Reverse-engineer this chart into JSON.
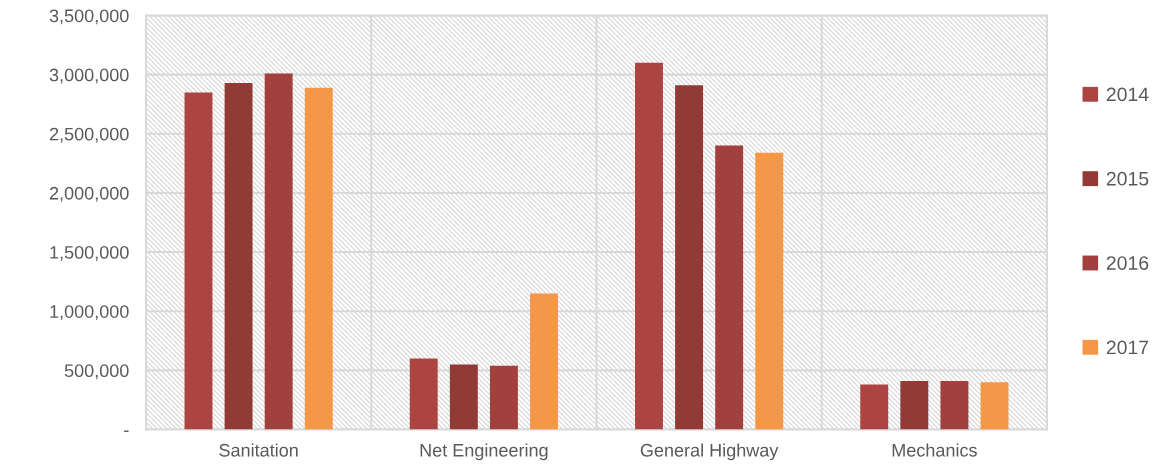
{
  "chart_data": {
    "type": "bar",
    "categories": [
      "Sanitation",
      "Net Engineering",
      "General Highway",
      "Mechanics"
    ],
    "series": [
      {
        "name": "2014",
        "color": "#ac4542",
        "values": [
          2850000,
          600000,
          3100000,
          380000
        ]
      },
      {
        "name": "2015",
        "color": "#923a36",
        "values": [
          2930000,
          550000,
          2910000,
          410000
        ]
      },
      {
        "name": "2016",
        "color": "#a1403d",
        "values": [
          3010000,
          540000,
          2400000,
          410000
        ]
      },
      {
        "name": "2017",
        "color": "#f59748",
        "values": [
          2890000,
          1150000,
          2340000,
          400000
        ]
      }
    ],
    "ylim": [
      0,
      3500000
    ],
    "yticks": [
      {
        "value": 0,
        "label": "-"
      },
      {
        "value": 500000,
        "label": "500,000"
      },
      {
        "value": 1000000,
        "label": "1,000,000"
      },
      {
        "value": 1500000,
        "label": "1,500,000"
      },
      {
        "value": 2000000,
        "label": "2,000,000"
      },
      {
        "value": 2500000,
        "label": "2,500,000"
      },
      {
        "value": 3000000,
        "label": "3,000,000"
      },
      {
        "value": 3500000,
        "label": "3,500,000"
      }
    ],
    "grid": true,
    "legend": "right"
  }
}
